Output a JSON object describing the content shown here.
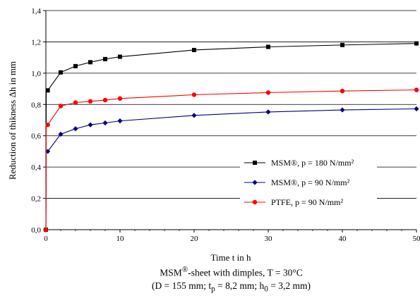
{
  "chart_data": {
    "type": "line",
    "xlabel": "Time t in h",
    "ylabel": "Reduction of thikness Δh in mm",
    "xlim": [
      0,
      50
    ],
    "ylim": [
      0,
      1.4
    ],
    "x_ticks": [
      "0",
      "10",
      "20",
      "30",
      "40",
      "50"
    ],
    "y_ticks": [
      "0,0",
      "0,2",
      "0,4",
      "0,6",
      "0,8",
      "1,0",
      "1,2",
      "1,4"
    ],
    "grid": "horizontal",
    "legend_position": "right-middle",
    "series": [
      {
        "name": "MSM®, p = 180 N/mm²",
        "color": "#000000",
        "marker": "square",
        "x": [
          0,
          0.05,
          0.25,
          2,
          4,
          6,
          8,
          10,
          20,
          30,
          40,
          50
        ],
        "y": [
          0.0,
          0.89,
          0.89,
          1.005,
          1.045,
          1.07,
          1.09,
          1.105,
          1.148,
          1.168,
          1.18,
          1.19
        ]
      },
      {
        "name": "MSM®, p = 90 N/mm²",
        "color": "#000080",
        "marker": "diamond",
        "x": [
          0,
          0.05,
          0.25,
          2,
          4,
          6,
          8,
          10,
          20,
          30,
          40,
          50
        ],
        "y": [
          0.0,
          0.5,
          0.5,
          0.61,
          0.645,
          0.67,
          0.682,
          0.695,
          0.73,
          0.752,
          0.765,
          0.772
        ]
      },
      {
        "name": "PTFE,   p = 90 N/mm²",
        "color": "#ff0000",
        "marker": "circle",
        "x": [
          0,
          0.05,
          0.25,
          2,
          4,
          6,
          8,
          10,
          20,
          30,
          40,
          50
        ],
        "y": [
          0.0,
          0.67,
          0.67,
          0.79,
          0.812,
          0.82,
          0.828,
          0.838,
          0.862,
          0.876,
          0.886,
          0.893
        ]
      }
    ]
  },
  "captions": {
    "line1_prefix": "MSM",
    "line1_sup": "®",
    "line1_suffix": "-sheet with dimples, T = 30°C",
    "line2_a": "(D = 155 mm; t",
    "line2_sub1": "p",
    "line2_b": " = 8,2 mm; h",
    "line2_sub2": "0",
    "line2_c": " = 3,2 mm)"
  }
}
